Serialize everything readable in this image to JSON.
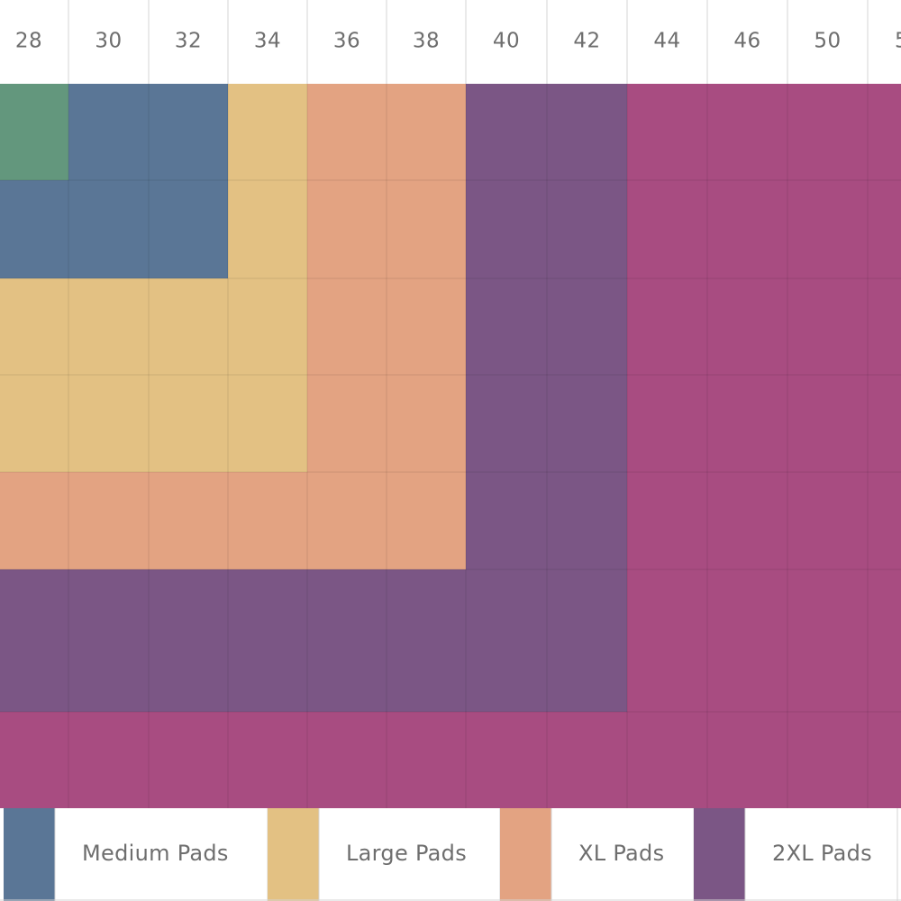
{
  "chart_data": {
    "type": "heatmap",
    "title": "",
    "xlabel": "",
    "ylabel": "",
    "x": [
      "28",
      "30",
      "32",
      "34",
      "36",
      "38",
      "40",
      "42",
      "44",
      "46",
      "50",
      "5"
    ],
    "categories_key": [
      "S",
      "M",
      "L",
      "XL",
      "2XL",
      "3XL"
    ],
    "cell_categories": [
      [
        "S",
        "M",
        "M",
        "L",
        "XL",
        "XL",
        "2XL",
        "2XL",
        "3XL",
        "3XL",
        "3XL",
        "3XL"
      ],
      [
        "M",
        "M",
        "M",
        "L",
        "XL",
        "XL",
        "2XL",
        "2XL",
        "3XL",
        "3XL",
        "3XL",
        "3XL"
      ],
      [
        "L",
        "L",
        "L",
        "L",
        "XL",
        "XL",
        "2XL",
        "2XL",
        "3XL",
        "3XL",
        "3XL",
        "3XL"
      ],
      [
        "L",
        "L",
        "L",
        "L",
        "XL",
        "XL",
        "2XL",
        "2XL",
        "3XL",
        "3XL",
        "3XL",
        "3XL"
      ],
      [
        "XL",
        "XL",
        "XL",
        "XL",
        "XL",
        "XL",
        "2XL",
        "2XL",
        "3XL",
        "3XL",
        "3XL",
        "3XL"
      ],
      [
        "2XL",
        "2XL",
        "2XL",
        "2XL",
        "2XL",
        "2XL",
        "2XL",
        "2XL",
        "3XL",
        "3XL",
        "3XL",
        "3XL"
      ],
      [
        "3XL",
        "3XL",
        "3XL",
        "3XL",
        "3XL",
        "3XL",
        "3XL",
        "3XL",
        "3XL",
        "3XL",
        "3XL",
        "3XL"
      ]
    ],
    "colors": {
      "S": "#63977d",
      "M": "#5a7696",
      "L": "#e3c183",
      "XL": "#e3a382",
      "2XL": "#7b5685",
      "3XL": "#a84c81"
    },
    "legend": {
      "placement": "bottom",
      "items": [
        {
          "key": "M",
          "label": "Medium Pads"
        },
        {
          "key": "L",
          "label": "Large Pads"
        },
        {
          "key": "XL",
          "label": "XL Pads"
        },
        {
          "key": "2XL",
          "label": "2XL Pads"
        }
      ]
    },
    "grid": true
  }
}
